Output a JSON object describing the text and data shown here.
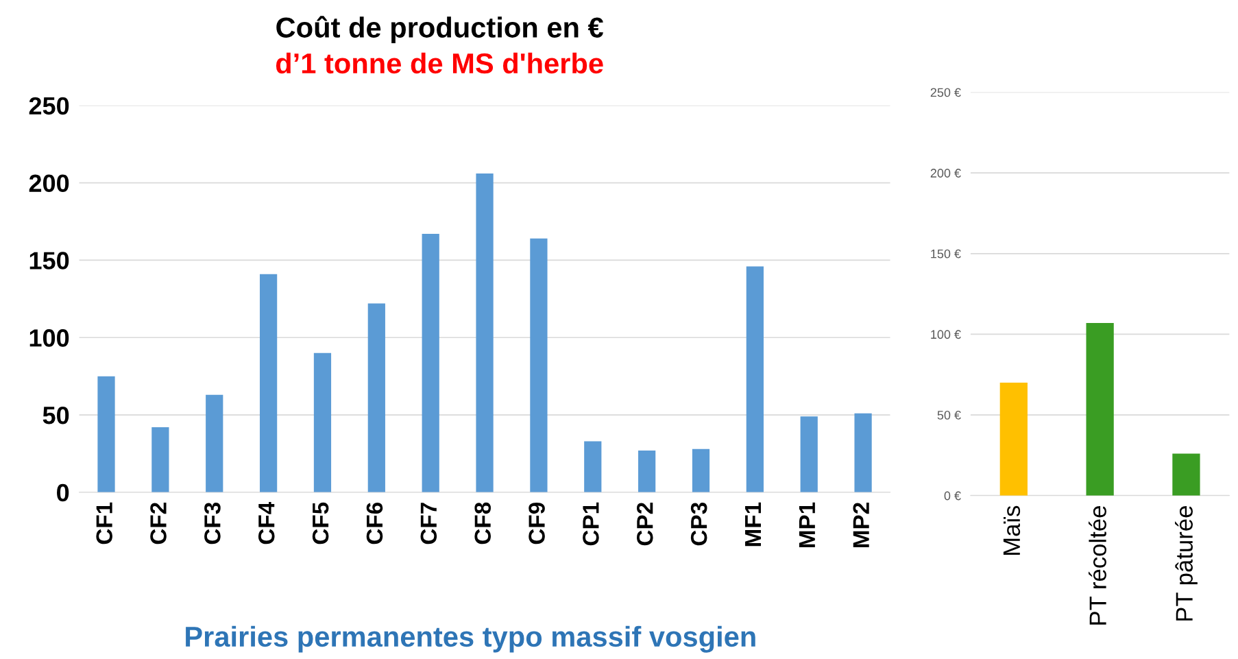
{
  "chart_data": [
    {
      "type": "bar",
      "title": "Coût de production en €",
      "subtitle": "d’1 tonne de MS d'herbe",
      "xlabel": "Prairies permanentes typo massif vosgien",
      "categories": [
        "CF1",
        "CF2",
        "CF3",
        "CF4",
        "CF5",
        "CF6",
        "CF7",
        "CF8",
        "CF9",
        "CP1",
        "CP2",
        "CP3",
        "MF1",
        "MP1",
        "MP2"
      ],
      "values": [
        75,
        42,
        63,
        141,
        90,
        122,
        167,
        206,
        164,
        33,
        27,
        28,
        146,
        49,
        51
      ],
      "color": "#5b9bd5",
      "ylim": [
        0,
        250
      ],
      "yticks": [
        0,
        50,
        100,
        150,
        200,
        250
      ],
      "grid": "y",
      "legend": false
    },
    {
      "type": "bar",
      "categories": [
        "Maïs",
        "PT récoltée",
        "PT pâturée"
      ],
      "values": [
        70,
        107,
        26
      ],
      "colors": [
        "#ffc000",
        "#3a9d23",
        "#3a9d23"
      ],
      "ylim": [
        0,
        250
      ],
      "yticks": [
        {
          "value": 0,
          "label": "0 €"
        },
        {
          "value": 50,
          "label": "50 €"
        },
        {
          "value": 100,
          "label": "100 €"
        },
        {
          "value": 150,
          "label": "150 €"
        },
        {
          "value": 200,
          "label": "200 €"
        },
        {
          "value": 250,
          "label": "250 €"
        }
      ],
      "grid": "y",
      "legend": false
    }
  ]
}
